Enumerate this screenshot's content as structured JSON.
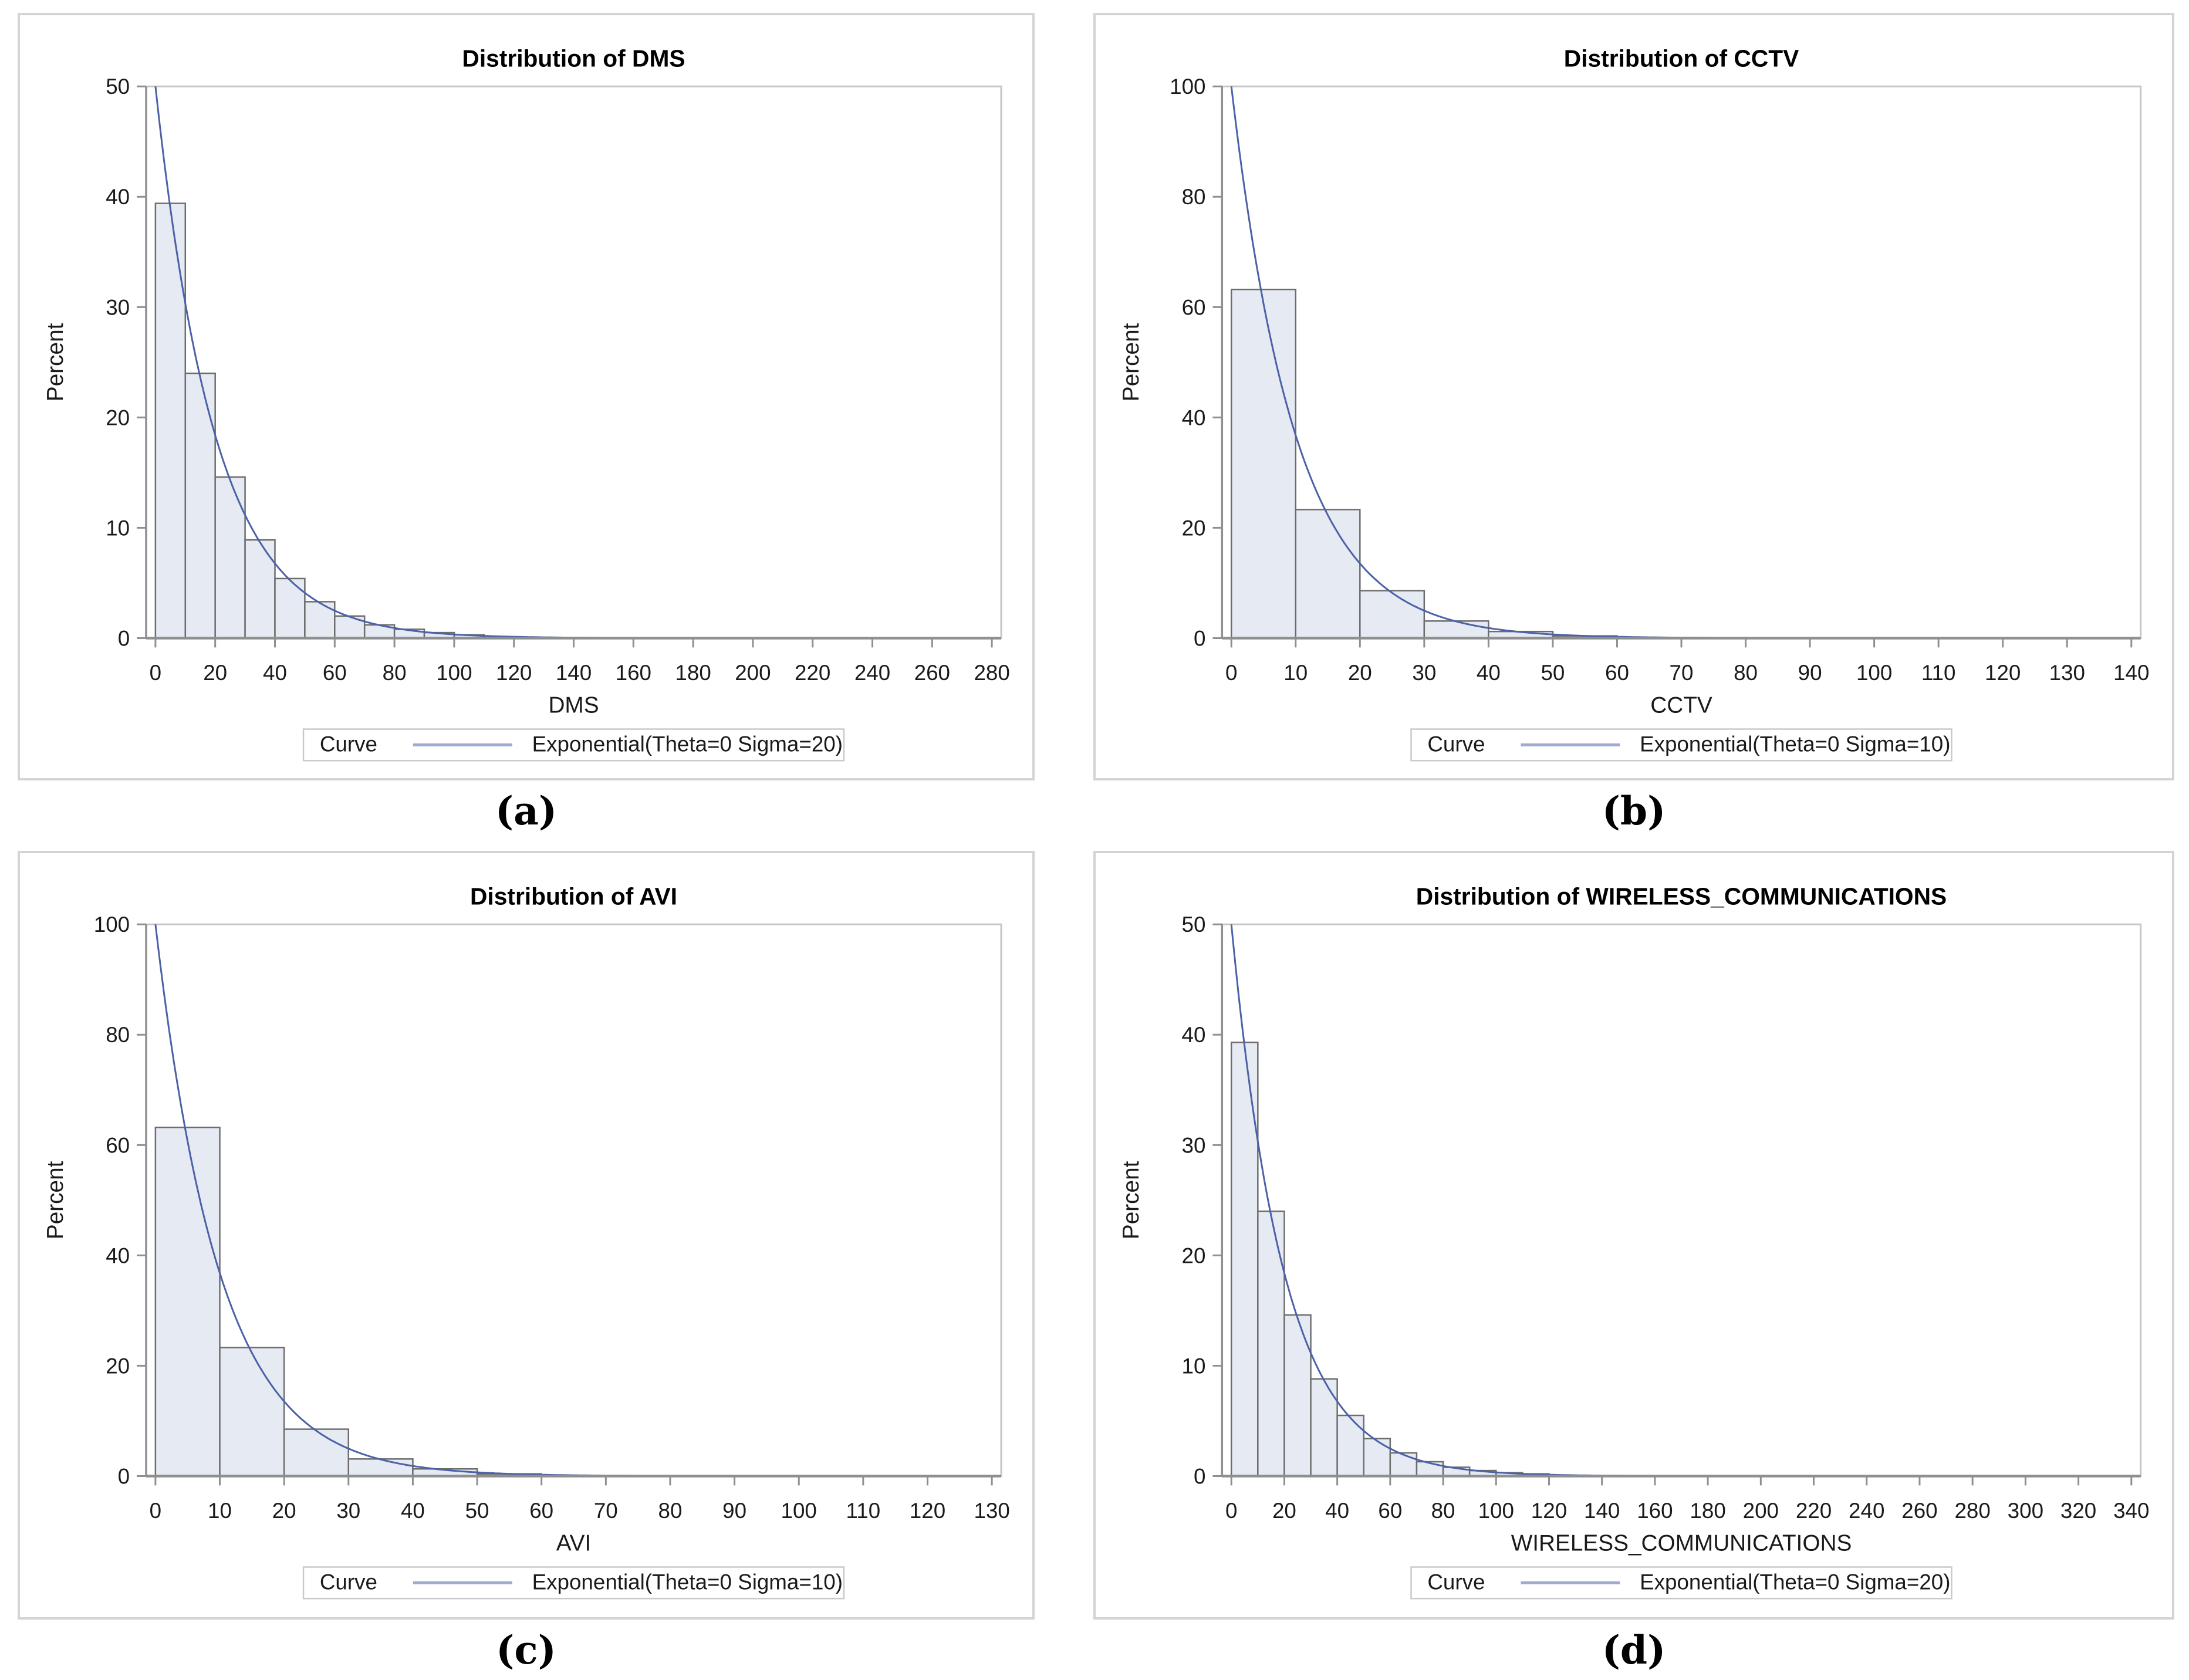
{
  "figure": {
    "panels": [
      {
        "id": "a",
        "caption": "(a)"
      },
      {
        "id": "b",
        "caption": "(b)"
      },
      {
        "id": "c",
        "caption": "(c)"
      },
      {
        "id": "d",
        "caption": "(d)"
      }
    ]
  },
  "colors": {
    "bar_fill": "#e5eaf3",
    "bar_stroke": "#6d6d6d",
    "curve": "#4c61a6",
    "legend_line": "#9dabd2",
    "axis": "#8f8f8f",
    "frame": "#c6c6c6",
    "tick_label": "#1a1a1a",
    "legend_border": "#c9c9c9",
    "panel_border": "#d4d4d4"
  },
  "chart_data": [
    {
      "type": "bar",
      "subtype": "histogram-with-exponential-curve",
      "title": "Distribution of DMS",
      "xlabel": "DMS",
      "ylabel": "Percent",
      "bin_start": 0,
      "bin_width": 10,
      "values": [
        39.4,
        24.0,
        14.6,
        8.9,
        5.4,
        3.3,
        2.0,
        1.2,
        0.8,
        0.5,
        0.3
      ],
      "xlim": [
        0,
        280
      ],
      "ylim": [
        0,
        50
      ],
      "xticks": [
        0,
        20,
        40,
        60,
        80,
        100,
        120,
        140,
        160,
        180,
        200,
        220,
        240,
        260,
        280
      ],
      "yticks": [
        0,
        10,
        20,
        30,
        40,
        50
      ],
      "grid": false,
      "legend_position": "bottom-center",
      "legend_label": "Curve",
      "curve": {
        "name": "Exponential(Theta=0 Sigma=20)",
        "theta": 0,
        "sigma": 20
      }
    },
    {
      "type": "bar",
      "subtype": "histogram-with-exponential-curve",
      "title": "Distribution of CCTV",
      "xlabel": "CCTV",
      "ylabel": "Percent",
      "bin_start": 0,
      "bin_width": 10,
      "values": [
        63.2,
        23.3,
        8.6,
        3.1,
        1.2,
        0.4
      ],
      "xlim": [
        0,
        140
      ],
      "ylim": [
        0,
        100
      ],
      "xticks": [
        0,
        10,
        20,
        30,
        40,
        50,
        60,
        70,
        80,
        90,
        100,
        110,
        120,
        130,
        140
      ],
      "yticks": [
        0,
        20,
        40,
        60,
        80,
        100
      ],
      "grid": false,
      "legend_position": "bottom-center",
      "legend_label": "Curve",
      "curve": {
        "name": "Exponential(Theta=0 Sigma=10)",
        "theta": 0,
        "sigma": 10
      }
    },
    {
      "type": "bar",
      "subtype": "histogram-with-exponential-curve",
      "title": "Distribution of AVI",
      "xlabel": "AVI",
      "ylabel": "Percent",
      "bin_start": 0,
      "bin_width": 10,
      "values": [
        63.2,
        23.3,
        8.5,
        3.1,
        1.3,
        0.4
      ],
      "xlim": [
        0,
        130
      ],
      "ylim": [
        0,
        100
      ],
      "xticks": [
        0,
        10,
        20,
        30,
        40,
        50,
        60,
        70,
        80,
        90,
        100,
        110,
        120,
        130
      ],
      "yticks": [
        0,
        20,
        40,
        60,
        80,
        100
      ],
      "grid": false,
      "legend_position": "bottom-center",
      "legend_label": "Curve",
      "curve": {
        "name": "Exponential(Theta=0 Sigma=10)",
        "theta": 0,
        "sigma": 10
      }
    },
    {
      "type": "bar",
      "subtype": "histogram-with-exponential-curve",
      "title": "Distribution of WIRELESS_COMMUNICATIONS",
      "xlabel": "WIRELESS_COMMUNICATIONS",
      "ylabel": "Percent",
      "bin_start": 0,
      "bin_width": 10,
      "values": [
        39.3,
        24.0,
        14.6,
        8.8,
        5.5,
        3.4,
        2.1,
        1.3,
        0.8,
        0.5,
        0.3,
        0.2
      ],
      "xlim": [
        0,
        340
      ],
      "ylim": [
        0,
        50
      ],
      "xticks": [
        0,
        20,
        40,
        60,
        80,
        100,
        120,
        140,
        160,
        180,
        200,
        220,
        240,
        260,
        280,
        300,
        320,
        340
      ],
      "yticks": [
        0,
        10,
        20,
        30,
        40,
        50
      ],
      "grid": false,
      "legend_position": "bottom-center",
      "legend_label": "Curve",
      "curve": {
        "name": "Exponential(Theta=0 Sigma=20)",
        "theta": 0,
        "sigma": 20
      }
    }
  ]
}
